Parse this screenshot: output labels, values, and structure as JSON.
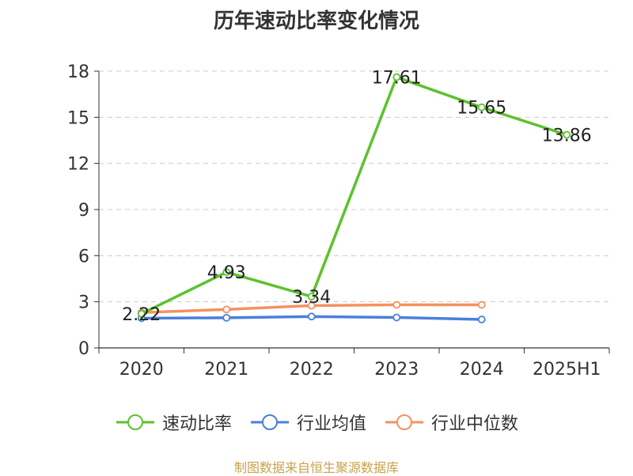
{
  "title": "历年速动比率变化情况",
  "footer": "制图数据来自恒生聚源数据库",
  "chart_data": {
    "type": "line",
    "categories": [
      "2020",
      "2021",
      "2022",
      "2023",
      "2024",
      "2025H1"
    ],
    "ylim": [
      0,
      18
    ],
    "yticks": [
      0,
      3,
      6,
      9,
      12,
      15,
      18
    ],
    "grid": true,
    "legend": "bottom",
    "series": [
      {
        "name": "速动比率",
        "color": "#5cc22c",
        "values": [
          2.22,
          4.93,
          3.34,
          17.61,
          15.65,
          13.86
        ],
        "labels": [
          "2.22",
          "4.93",
          "3.34",
          "17.61",
          "15.65",
          "13.86"
        ]
      },
      {
        "name": "行业均值",
        "color": "#4a7fdc",
        "values": [
          1.93,
          1.96,
          2.04,
          1.98,
          1.85,
          null
        ]
      },
      {
        "name": "行业中位数",
        "color": "#f39260",
        "values": [
          2.3,
          2.5,
          2.75,
          2.8,
          2.8,
          null
        ]
      }
    ]
  }
}
